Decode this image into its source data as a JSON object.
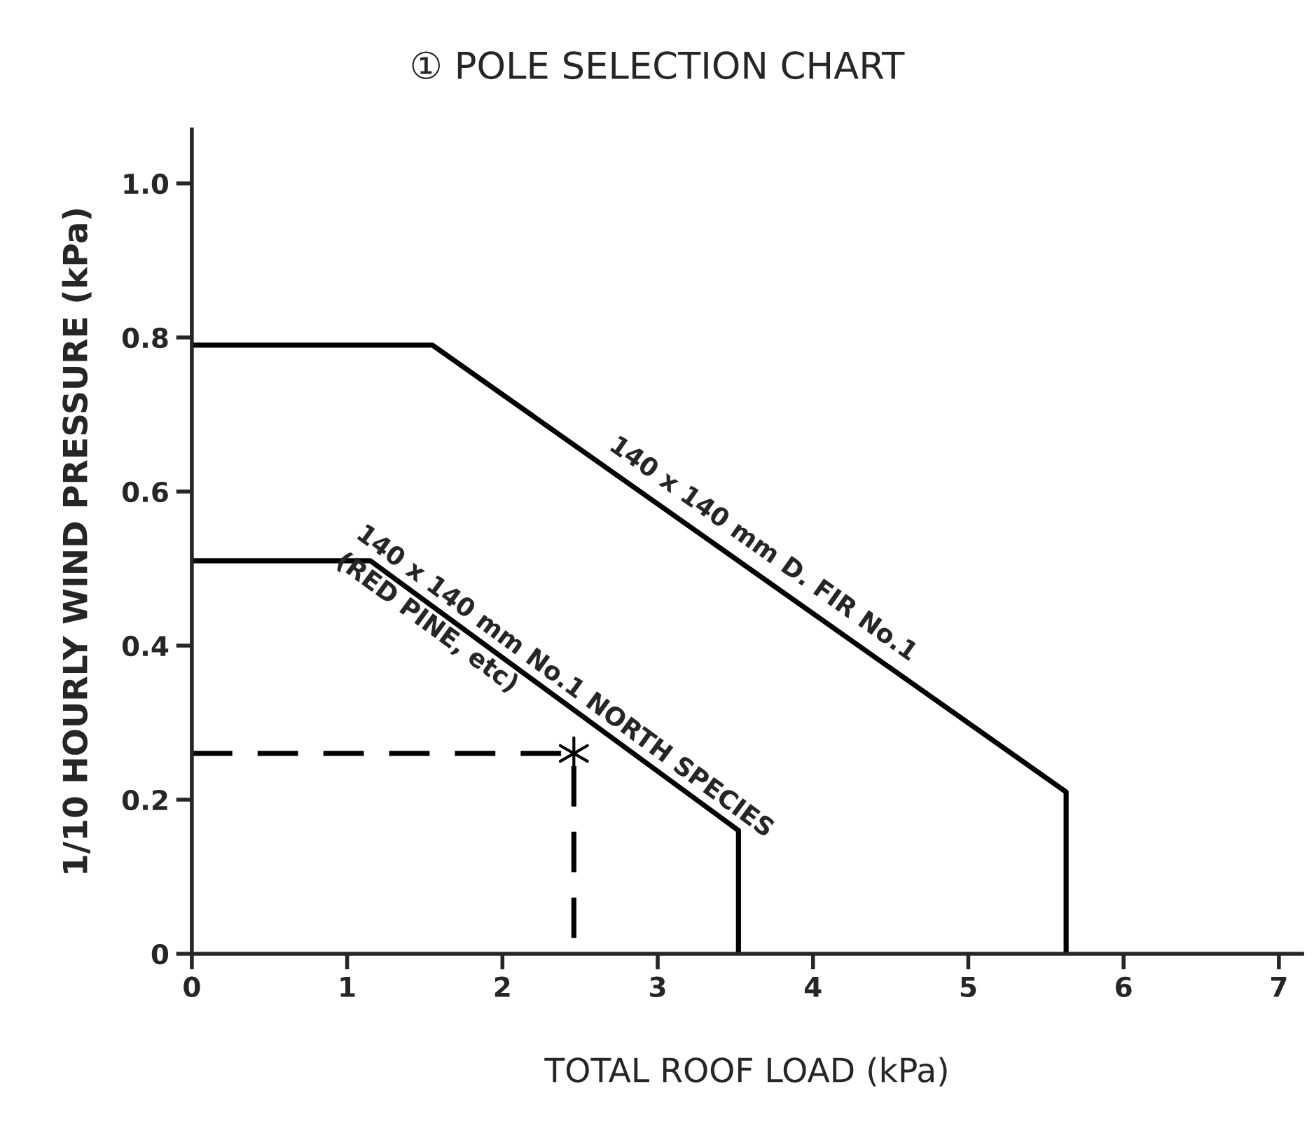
{
  "chart_data": {
    "type": "line",
    "title": "① POLE SELECTION CHART",
    "xlabel": "TOTAL ROOF LOAD (kPa)",
    "ylabel": "1/10 HOURLY WIND PRESSURE (kPa)",
    "series": [
      {
        "name": "140 x 140 mm D. FIR No.1",
        "color": "#000000",
        "x": [
          0,
          1.55,
          5.63,
          5.63
        ],
        "values": [
          0.79,
          0.79,
          0.21,
          0
        ]
      },
      {
        "name": "140 x 140 mm No.1 NORTH SPECIES\n(RED PINE, etc)",
        "color": "#000000",
        "x": [
          0,
          1.15,
          3.52,
          3.52
        ],
        "values": [
          0.51,
          0.51,
          0.16,
          0
        ]
      },
      {
        "color": "#000000",
        "line_style": "dashed",
        "x": [
          0,
          2.46,
          2.46
        ],
        "values": [
          0.26,
          0.26,
          0
        ]
      },
      {
        "type": "scatter",
        "marker": "cross",
        "color": "#000000",
        "x": [
          2.46
        ],
        "values": [
          0.26
        ]
      }
    ],
    "xlim": [
      0,
      7.15
    ],
    "ylim": [
      0,
      1.07
    ],
    "xticks": [
      0,
      1,
      2,
      3,
      4,
      5,
      6,
      7
    ],
    "yticks": [
      0,
      0.2,
      0.4,
      0.6,
      0.8,
      {
        "value": 1,
        "label": "1.0"
      }
    ],
    "grid": false,
    "legend": false
  }
}
